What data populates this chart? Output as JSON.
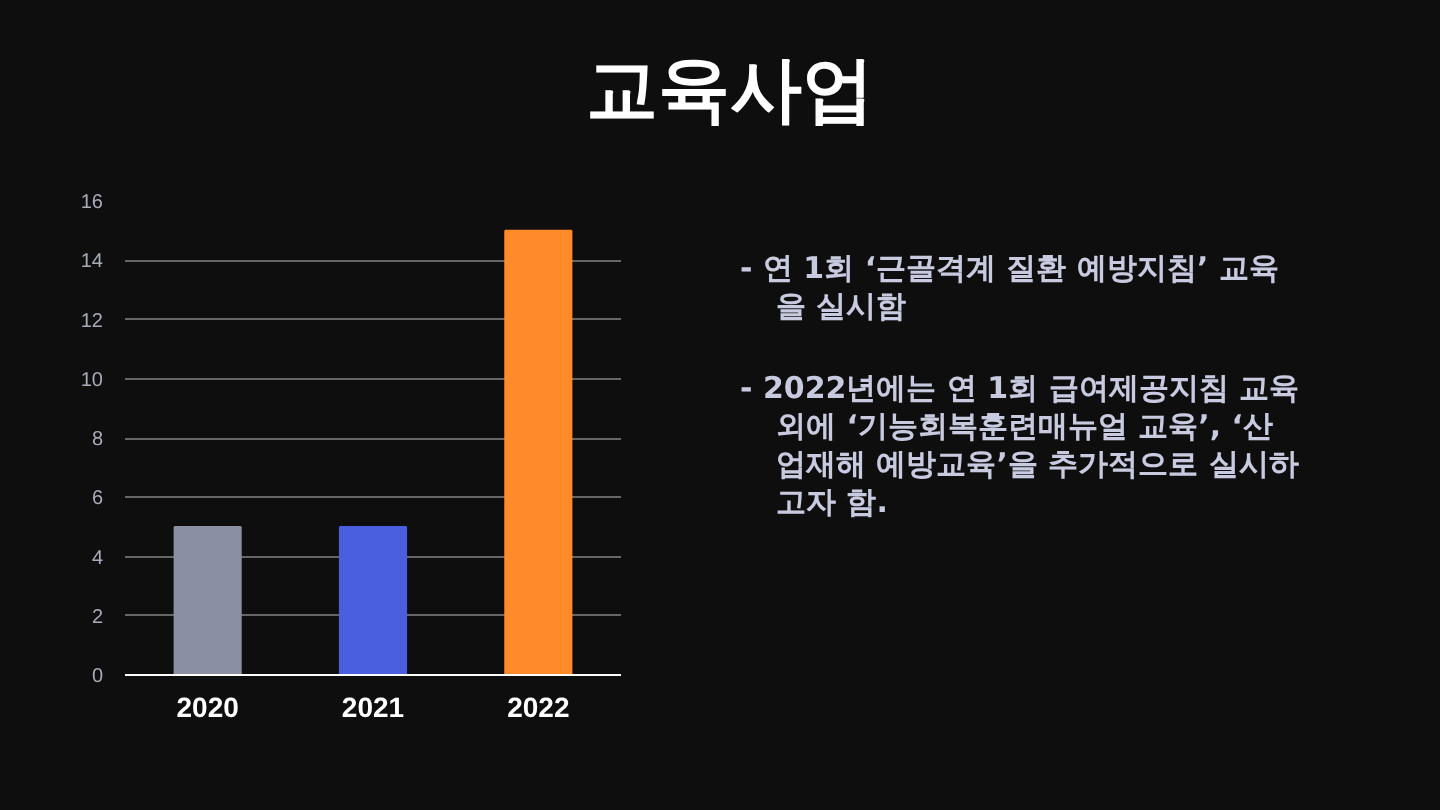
{
  "chart_data": {
    "type": "bar",
    "title": "교육사업",
    "categories": [
      "2020",
      "2021",
      "2022"
    ],
    "values": [
      5,
      5,
      15
    ],
    "colors": [
      "#8a8fa3",
      "#4a5fe0",
      "#ff8a2a"
    ],
    "ylim": [
      0,
      16
    ],
    "yticks": [
      0,
      2,
      4,
      6,
      8,
      10,
      12,
      14,
      16
    ],
    "grid": "y",
    "annotations": [
      "- 연 1회 ‘근골격계 질환 예방지침’ 교육을 실시함",
      "- 2022년에는 연 1회 급여제공지침 교육 외에 ‘기능회복훈련매뉴얼 교육’, ‘산업재해 예방교육’을 추가적으로 실시하고자 함."
    ]
  }
}
